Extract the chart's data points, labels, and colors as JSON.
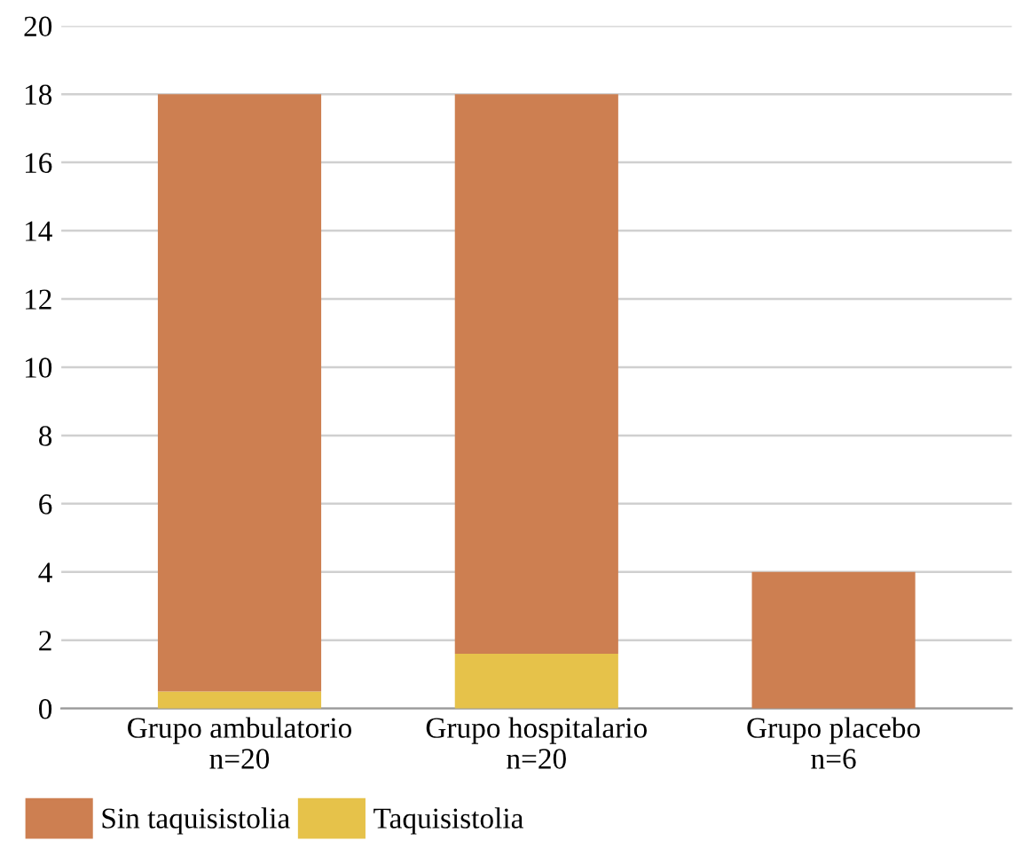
{
  "chart_data": {
    "type": "bar",
    "stacked": true,
    "categories": [
      "Grupo ambulatorio\nn=20",
      "Grupo hospitalario\nn=20",
      "Grupo placebo\nn=6"
    ],
    "series": [
      {
        "name": "Taquisistolia",
        "color": "#e6c24a",
        "values": [
          0.5,
          1.6,
          0
        ]
      },
      {
        "name": "Sin taquisistolia",
        "color": "#cd7f51",
        "values": [
          17.5,
          16.4,
          4
        ]
      }
    ],
    "ylim": [
      0,
      20
    ],
    "yticks": [
      0,
      2,
      4,
      6,
      8,
      10,
      12,
      14,
      16,
      18,
      20
    ],
    "grid": "y",
    "legend": "bottom left"
  }
}
